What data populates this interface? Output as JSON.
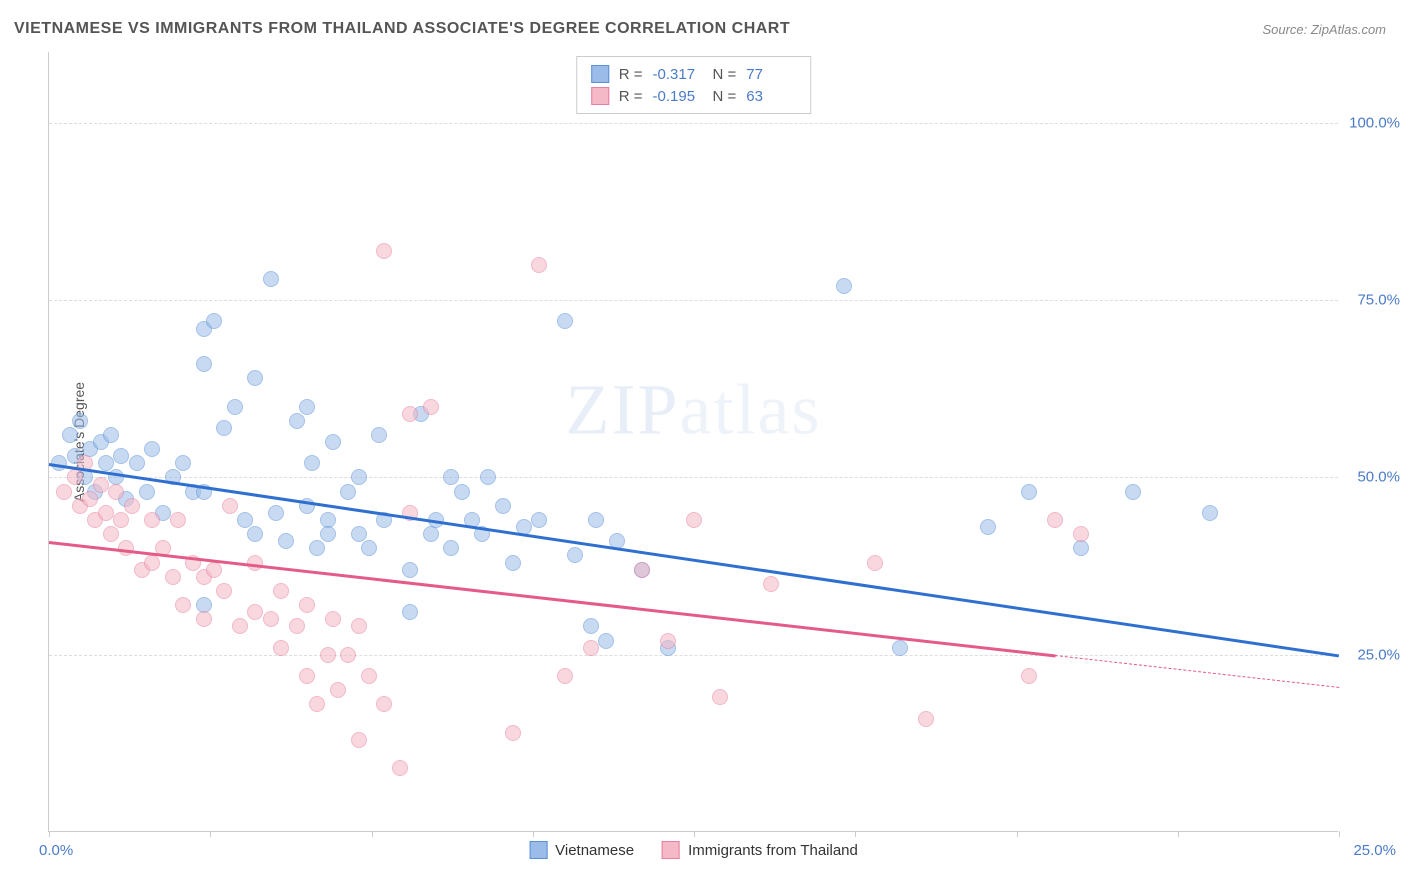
{
  "title": "VIETNAMESE VS IMMIGRANTS FROM THAILAND ASSOCIATE'S DEGREE CORRELATION CHART",
  "source_label": "Source: ZipAtlas.com",
  "watermark": "ZIPatlas",
  "y_axis_title": "Associate's Degree",
  "x_origin_label": "0.0%",
  "x_end_label": "25.0%",
  "chart": {
    "type": "scatter",
    "xlim": [
      0,
      25
    ],
    "ylim": [
      0,
      110
    ],
    "y_ticks": [
      25,
      50,
      75,
      100
    ],
    "y_tick_labels": [
      "25.0%",
      "50.0%",
      "75.0%",
      "100.0%"
    ],
    "x_ticks": [
      0,
      3.125,
      6.25,
      9.375,
      12.5,
      15.625,
      18.75,
      21.875,
      25
    ],
    "background_color": "#ffffff",
    "grid_color": "#dddddd",
    "point_radius": 8,
    "point_opacity": 0.55,
    "series": [
      {
        "name": "Vietnamese",
        "color_fill": "#9bbce8",
        "color_stroke": "#5a8fd6",
        "R": "-0.317",
        "N": "77",
        "trend": {
          "x1": 0,
          "y1": 52,
          "x2": 25,
          "y2": 25,
          "color": "#2f6fd0",
          "width": 2.5
        },
        "points": [
          [
            0.2,
            52
          ],
          [
            0.4,
            56
          ],
          [
            0.5,
            53
          ],
          [
            0.6,
            58
          ],
          [
            0.7,
            50
          ],
          [
            0.8,
            54
          ],
          [
            0.9,
            48
          ],
          [
            1.0,
            55
          ],
          [
            1.1,
            52
          ],
          [
            1.2,
            56
          ],
          [
            1.3,
            50
          ],
          [
            1.4,
            53
          ],
          [
            1.5,
            47
          ],
          [
            1.7,
            52
          ],
          [
            1.9,
            48
          ],
          [
            2.0,
            54
          ],
          [
            2.2,
            45
          ],
          [
            2.4,
            50
          ],
          [
            2.6,
            52
          ],
          [
            2.8,
            48
          ],
          [
            3.0,
            71
          ],
          [
            3.0,
            66
          ],
          [
            3.0,
            48
          ],
          [
            3.0,
            32
          ],
          [
            3.2,
            72
          ],
          [
            3.4,
            57
          ],
          [
            3.6,
            60
          ],
          [
            3.8,
            44
          ],
          [
            4.0,
            64
          ],
          [
            4.0,
            42
          ],
          [
            4.3,
            78
          ],
          [
            4.4,
            45
          ],
          [
            4.6,
            41
          ],
          [
            4.8,
            58
          ],
          [
            5.0,
            60
          ],
          [
            5.0,
            46
          ],
          [
            5.1,
            52
          ],
          [
            5.2,
            40
          ],
          [
            5.4,
            44
          ],
          [
            5.4,
            42
          ],
          [
            5.5,
            55
          ],
          [
            5.8,
            48
          ],
          [
            6.0,
            50
          ],
          [
            6.0,
            42
          ],
          [
            6.2,
            40
          ],
          [
            6.4,
            56
          ],
          [
            6.5,
            44
          ],
          [
            7.0,
            37
          ],
          [
            7.0,
            31
          ],
          [
            7.2,
            59
          ],
          [
            7.4,
            42
          ],
          [
            7.5,
            44
          ],
          [
            7.8,
            40
          ],
          [
            7.8,
            50
          ],
          [
            8.0,
            48
          ],
          [
            8.2,
            44
          ],
          [
            8.4,
            42
          ],
          [
            8.5,
            50
          ],
          [
            8.8,
            46
          ],
          [
            9.0,
            38
          ],
          [
            9.2,
            43
          ],
          [
            9.5,
            44
          ],
          [
            10.0,
            72
          ],
          [
            10.2,
            39
          ],
          [
            10.5,
            29
          ],
          [
            10.6,
            44
          ],
          [
            10.8,
            27
          ],
          [
            11.0,
            41
          ],
          [
            11.5,
            37
          ],
          [
            12.0,
            26
          ],
          [
            15.4,
            77
          ],
          [
            16.5,
            26
          ],
          [
            18.2,
            43
          ],
          [
            19.0,
            48
          ],
          [
            20.0,
            40
          ],
          [
            21.0,
            48
          ],
          [
            22.5,
            45
          ]
        ]
      },
      {
        "name": "Immigrants from Thailand",
        "color_fill": "#f4b8c6",
        "color_stroke": "#e87fa0",
        "R": "-0.195",
        "N": "63",
        "trend": {
          "x1": 0,
          "y1": 41,
          "x2": 19.5,
          "y2": 25,
          "color": "#e35b86",
          "width": 2.5,
          "dash_ext": {
            "x2": 25,
            "y2": 20.5
          }
        },
        "points": [
          [
            0.3,
            48
          ],
          [
            0.5,
            50
          ],
          [
            0.6,
            46
          ],
          [
            0.7,
            52
          ],
          [
            0.8,
            47
          ],
          [
            0.9,
            44
          ],
          [
            1.0,
            49
          ],
          [
            1.1,
            45
          ],
          [
            1.2,
            42
          ],
          [
            1.3,
            48
          ],
          [
            1.4,
            44
          ],
          [
            1.5,
            40
          ],
          [
            1.6,
            46
          ],
          [
            1.8,
            37
          ],
          [
            2.0,
            44
          ],
          [
            2.0,
            38
          ],
          [
            2.2,
            40
          ],
          [
            2.4,
            36
          ],
          [
            2.5,
            44
          ],
          [
            2.6,
            32
          ],
          [
            2.8,
            38
          ],
          [
            3.0,
            36
          ],
          [
            3.0,
            30
          ],
          [
            3.2,
            37
          ],
          [
            3.4,
            34
          ],
          [
            3.5,
            46
          ],
          [
            3.7,
            29
          ],
          [
            4.0,
            38
          ],
          [
            4.0,
            31
          ],
          [
            4.3,
            30
          ],
          [
            4.5,
            34
          ],
          [
            4.5,
            26
          ],
          [
            4.8,
            29
          ],
          [
            5.0,
            22
          ],
          [
            5.0,
            32
          ],
          [
            5.2,
            18
          ],
          [
            5.4,
            25
          ],
          [
            5.5,
            30
          ],
          [
            5.6,
            20
          ],
          [
            5.8,
            25
          ],
          [
            6.0,
            13
          ],
          [
            6.0,
            29
          ],
          [
            6.2,
            22
          ],
          [
            6.5,
            18
          ],
          [
            6.5,
            82
          ],
          [
            6.8,
            9
          ],
          [
            7.0,
            45
          ],
          [
            7.0,
            59
          ],
          [
            7.4,
            60
          ],
          [
            9.0,
            14
          ],
          [
            9.5,
            80
          ],
          [
            10.0,
            22
          ],
          [
            10.5,
            26
          ],
          [
            11.5,
            37
          ],
          [
            12.0,
            27
          ],
          [
            12.5,
            44
          ],
          [
            13.0,
            19
          ],
          [
            14.0,
            35
          ],
          [
            16.0,
            38
          ],
          [
            17.0,
            16
          ],
          [
            19.0,
            22
          ],
          [
            19.5,
            44
          ],
          [
            20.0,
            42
          ]
        ]
      }
    ]
  },
  "stats_legend_labels": {
    "R": "R =",
    "N": "N ="
  },
  "bottom_legend": [
    "Vietnamese",
    "Immigrants from Thailand"
  ]
}
